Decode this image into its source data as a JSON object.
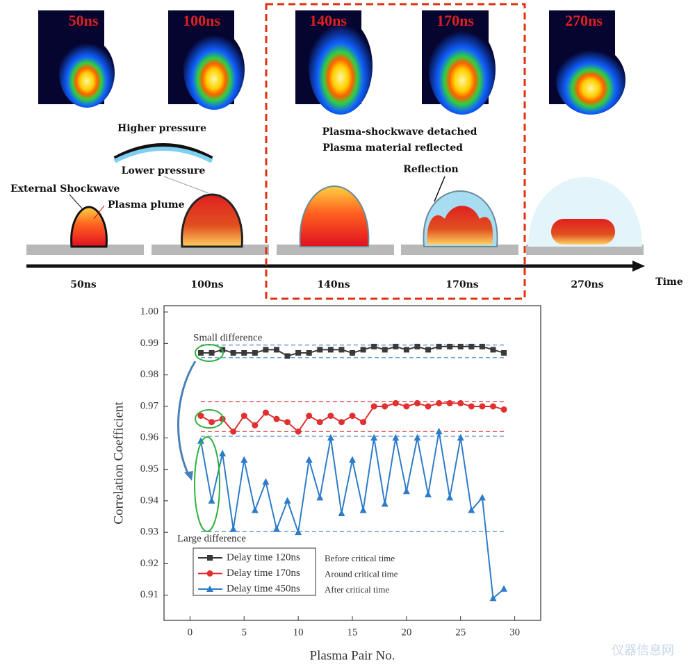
{
  "diagram": {
    "image_labels": [
      "50ns",
      "100ns",
      "140ns",
      "170ns",
      "270ns"
    ],
    "timeline_labels": [
      "50ns",
      "100ns",
      "140ns",
      "170ns",
      "270ns"
    ],
    "axis_label": "Time",
    "higher_pressure": "Higher pressure",
    "lower_pressure": "Lower pressure",
    "external_shockwave": "External Shockwave",
    "plasma_plume": "Plasma plume",
    "detached": "Plasma-shockwave detached",
    "reflected": "Plasma material reflected",
    "reflection": "Reflection",
    "watermark": "仪器信息网"
  },
  "chart_data": {
    "type": "line",
    "xlabel": "Plasma Pair No.",
    "ylabel": "Correlation Coefficient",
    "x": [
      1,
      2,
      3,
      4,
      5,
      6,
      7,
      8,
      9,
      10,
      11,
      12,
      13,
      14,
      15,
      16,
      17,
      18,
      19,
      20,
      21,
      22,
      23,
      24,
      25,
      26,
      27,
      28,
      29
    ],
    "series": [
      {
        "name": "Delay time 120ns",
        "note": "Before critical time",
        "color": "#3a3a3a",
        "marker": "square",
        "values": [
          0.987,
          0.987,
          0.988,
          0.987,
          0.987,
          0.987,
          0.988,
          0.988,
          0.986,
          0.987,
          0.987,
          0.988,
          0.988,
          0.988,
          0.987,
          0.988,
          0.989,
          0.988,
          0.989,
          0.988,
          0.989,
          0.988,
          0.989,
          0.989,
          0.989,
          0.989,
          0.989,
          0.988,
          0.987
        ]
      },
      {
        "name": "Delay time 170ns",
        "note": "Around critical time",
        "color": "#e03030",
        "marker": "circle",
        "values": [
          0.967,
          0.965,
          0.966,
          0.962,
          0.967,
          0.964,
          0.968,
          0.966,
          0.965,
          0.962,
          0.967,
          0.965,
          0.967,
          0.965,
          0.967,
          0.965,
          0.97,
          0.97,
          0.971,
          0.97,
          0.971,
          0.97,
          0.971,
          0.971,
          0.971,
          0.97,
          0.97,
          0.97,
          0.969
        ]
      },
      {
        "name": "Delay time 450ns",
        "note": "After critical time",
        "color": "#2e7cc8",
        "marker": "triangle",
        "values": [
          0.959,
          0.94,
          0.955,
          0.931,
          0.953,
          0.937,
          0.946,
          0.931,
          0.94,
          0.93,
          0.953,
          0.941,
          0.96,
          0.936,
          0.953,
          0.937,
          0.96,
          0.939,
          0.96,
          0.943,
          0.96,
          0.942,
          0.962,
          0.941,
          0.96,
          0.937,
          0.941,
          0.909,
          0.912
        ]
      }
    ],
    "reference_lines": [
      {
        "value": 0.9895,
        "color": "#6aa0d8"
      },
      {
        "value": 0.9855,
        "color": "#6aa0d8"
      },
      {
        "value": 0.9715,
        "color": "#e05050"
      },
      {
        "value": 0.962,
        "color": "#e05050"
      },
      {
        "value": 0.9605,
        "color": "#6aa0d8"
      },
      {
        "value": 0.9302,
        "color": "#6aa0d8"
      }
    ],
    "annotations": {
      "small": "Small difference",
      "large": "Large difference"
    },
    "xlim": [
      -2.4,
      32.4
    ],
    "xticks": [
      0,
      5,
      10,
      15,
      20,
      25,
      30
    ],
    "ylim": [
      0.902,
      1.002
    ],
    "yticks": [
      0.91,
      0.92,
      0.93,
      0.94,
      0.95,
      0.96,
      0.97,
      0.98,
      0.99,
      {
        "value": 1,
        "label": "1.00"
      }
    ]
  }
}
